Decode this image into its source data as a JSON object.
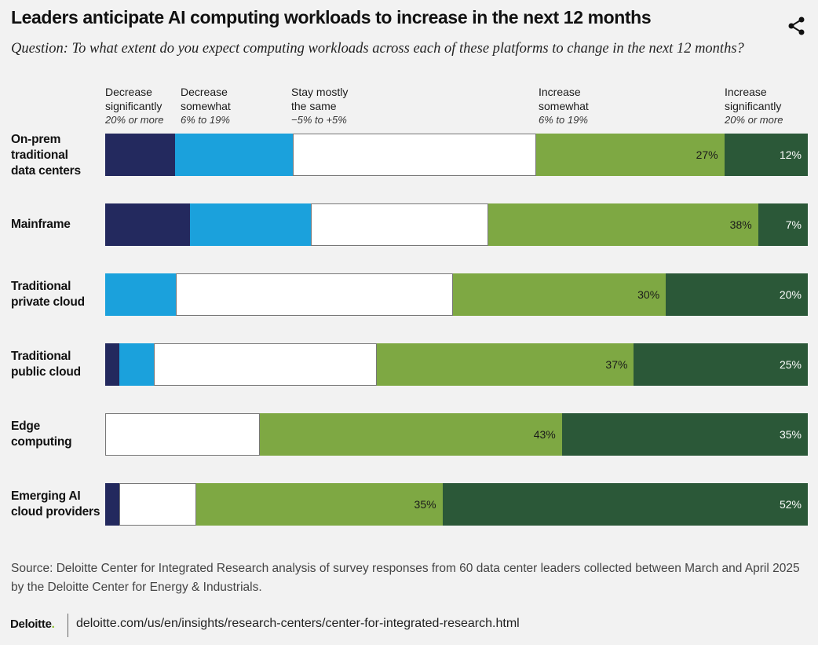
{
  "title": "Leaders anticipate AI computing workloads to increase in the next 12 months",
  "subtitle": "Question: To what extent do you expect computing workloads across each of these platforms to change in the next 12 months?",
  "share_icon": "share-icon",
  "legend": [
    {
      "key": "dec_sig",
      "line1": "Decrease",
      "line2": "significantly",
      "range": "20% or more",
      "color": "#23295e"
    },
    {
      "key": "dec_some",
      "line1": "Decrease",
      "line2": "somewhat",
      "range": "6% to 19%",
      "color": "#1ba1dc"
    },
    {
      "key": "same",
      "line1": "Stay mostly",
      "line2": "the same",
      "range": "−5% to +5%",
      "color": "#ffffff"
    },
    {
      "key": "inc_some",
      "line1": "Increase",
      "line2": "somewhat",
      "range": "6% to 19%",
      "color": "#7ea843"
    },
    {
      "key": "inc_sig",
      "line1": "Increase",
      "line2": "significantly",
      "range": "20% or more",
      "color": "#2b5838"
    }
  ],
  "chart_data": {
    "type": "bar",
    "orientation": "horizontal",
    "stacked": true,
    "title": "Leaders anticipate AI computing workloads to increase in the next 12 months",
    "categories": [
      "On-prem traditional data centers",
      "Mainframe",
      "Traditional private cloud",
      "Traditional public cloud",
      "Edge computing",
      "Emerging AI cloud providers"
    ],
    "category_lines": [
      [
        "On-prem",
        "traditional",
        "data centers"
      ],
      [
        "Mainframe"
      ],
      [
        "Traditional",
        "private cloud"
      ],
      [
        "Traditional",
        "public cloud"
      ],
      [
        "Edge",
        "computing"
      ],
      [
        "Emerging AI",
        "cloud providers"
      ]
    ],
    "series": [
      {
        "name": "Decrease significantly",
        "values": [
          10,
          12,
          0,
          2,
          0,
          2
        ]
      },
      {
        "name": "Decrease somewhat",
        "values": [
          17,
          17,
          10,
          5,
          0,
          0
        ]
      },
      {
        "name": "Stay mostly the same",
        "values": [
          35,
          25,
          39,
          32,
          22,
          11
        ]
      },
      {
        "name": "Increase somewhat",
        "values": [
          27,
          38,
          30,
          37,
          43,
          35
        ]
      },
      {
        "name": "Increase significantly",
        "values": [
          12,
          7,
          20,
          25,
          35,
          52
        ]
      }
    ],
    "value_labels": [
      [
        "",
        "",
        "",
        "27%",
        "12%"
      ],
      [
        "",
        "",
        "",
        "38%",
        "7%"
      ],
      [
        "",
        "",
        "",
        "30%",
        "20%"
      ],
      [
        "",
        "",
        "",
        "37%",
        "25%"
      ],
      [
        "",
        "",
        "",
        "43%",
        "35%"
      ],
      [
        "",
        "",
        "",
        "35%",
        "52%"
      ]
    ],
    "xlim": [
      0,
      100
    ],
    "unit": "%"
  },
  "source_lines": [
    "Source: Deloitte Center for Integrated Research analysis of survey responses from 60 data center leaders collected between March and April 2025",
    "by the Deloitte Center for Energy & Industrials."
  ],
  "footer": {
    "brand": "Deloitte",
    "brand_dot": ".",
    "url": "deloitte.com/us/en/insights/research-centers/center-for-integrated-research.html"
  }
}
